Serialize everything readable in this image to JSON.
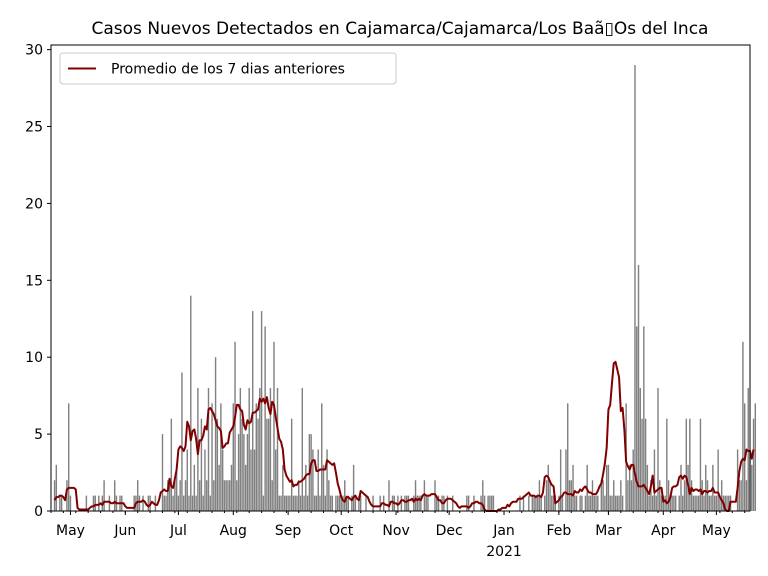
{
  "chart_data": {
    "type": "bar",
    "title": "Casos Nuevos Detectados en Cajamarca/Cajamarca/Los Baã▯Os del Inca",
    "xlabel": "",
    "ylabel": "",
    "ylim": [
      0,
      30.3
    ],
    "x_range": [
      "2020-04-20",
      "2021-05-20"
    ],
    "y_ticks": [
      0,
      5,
      10,
      15,
      20,
      25,
      30
    ],
    "x_ticks": [
      {
        "date": "2020-05-01",
        "label": "May"
      },
      {
        "date": "2020-06-01",
        "label": "Jun"
      },
      {
        "date": "2020-07-01",
        "label": "Jul"
      },
      {
        "date": "2020-08-01",
        "label": "Aug"
      },
      {
        "date": "2020-09-01",
        "label": "Sep"
      },
      {
        "date": "2020-10-01",
        "label": "Oct"
      },
      {
        "date": "2020-11-01",
        "label": "Nov"
      },
      {
        "date": "2020-12-01",
        "label": "Dec"
      },
      {
        "date": "2021-01-01",
        "label": "Jan",
        "sublabel": "2021"
      },
      {
        "date": "2021-02-01",
        "label": "Feb"
      },
      {
        "date": "2021-03-01",
        "label": "Mar"
      },
      {
        "date": "2021-04-01",
        "label": "Apr"
      },
      {
        "date": "2021-05-01",
        "label": "May"
      }
    ],
    "legend": {
      "placement": "upper-left",
      "entries": [
        "Promedio de los 7 dias anteriores"
      ]
    },
    "grid": false,
    "colors": {
      "bars": "#808080",
      "line": "#800000"
    },
    "start_date": "2020-04-22",
    "series": [
      {
        "type": "bar",
        "values": [
          2,
          3,
          0,
          1,
          1,
          0,
          0,
          2,
          7,
          1,
          0,
          0,
          0,
          0,
          0,
          0,
          0,
          0,
          1,
          0,
          0,
          0,
          1,
          1,
          0,
          1,
          0,
          1,
          2,
          0,
          0,
          1,
          0,
          0,
          2,
          1,
          0,
          1,
          1,
          0,
          0,
          0,
          0,
          0,
          0,
          1,
          1,
          2,
          1,
          0,
          1,
          0,
          0,
          1,
          1,
          0,
          0,
          1,
          0,
          0,
          0,
          5,
          1,
          1,
          2,
          2,
          6,
          1,
          2,
          3,
          1,
          2,
          9,
          1,
          2,
          4,
          1,
          14,
          1,
          3,
          1,
          8,
          2,
          6,
          1,
          4,
          2,
          8,
          1,
          7,
          2,
          10,
          6,
          3,
          7,
          4,
          2,
          2,
          2,
          2,
          3,
          7,
          11,
          2,
          5,
          8,
          6,
          5,
          3,
          5,
          8,
          4,
          13,
          4,
          7,
          6,
          8,
          13,
          1,
          12,
          6,
          6,
          8,
          2,
          11,
          4,
          8,
          1,
          1,
          3,
          1,
          1,
          1,
          1,
          6,
          1,
          1,
          1,
          2,
          1,
          8,
          1,
          3,
          1,
          5,
          5,
          4,
          1,
          1,
          4,
          1,
          7,
          3,
          1,
          4,
          2,
          1,
          1,
          0,
          1,
          1,
          1,
          1,
          1,
          2,
          1,
          1,
          0,
          1,
          3,
          1,
          0,
          1,
          1,
          0,
          0,
          1,
          0,
          0,
          0,
          1,
          0,
          0,
          0,
          1,
          0,
          1,
          0,
          0,
          2,
          0,
          1,
          1,
          0,
          1,
          0,
          1,
          0,
          1,
          1,
          1,
          0,
          0,
          1,
          2,
          1,
          1,
          1,
          0,
          2,
          1,
          1,
          0,
          0,
          0,
          2,
          1,
          1,
          0,
          1,
          1,
          0,
          1,
          0,
          0,
          1,
          0,
          0,
          0,
          0,
          0,
          0,
          0,
          1,
          1,
          0,
          0,
          1,
          0,
          0,
          0,
          1,
          2,
          1,
          0,
          1,
          1,
          1,
          1,
          0,
          0,
          0,
          0,
          0,
          0,
          0,
          0,
          0,
          0,
          0,
          0,
          0,
          0,
          1,
          0,
          1,
          0,
          0,
          1,
          0,
          1,
          1,
          1,
          1,
          2,
          1,
          0,
          1,
          2,
          3,
          2,
          1,
          1,
          1,
          0,
          1,
          4,
          1,
          0,
          4,
          7,
          2,
          2,
          3,
          1,
          1,
          0,
          1,
          1,
          0,
          1,
          3,
          1,
          1,
          2,
          1,
          1,
          1,
          0,
          2,
          2,
          1,
          3,
          3,
          1,
          1,
          2,
          1,
          1,
          1,
          2,
          1,
          0,
          7,
          2,
          3,
          2,
          4,
          29,
          12,
          16,
          8,
          6,
          12,
          6,
          3,
          1,
          2,
          1,
          4,
          1,
          8,
          2,
          1,
          1,
          1,
          6,
          2,
          1,
          1,
          1,
          1,
          0,
          1,
          3,
          1,
          2,
          6,
          3,
          6,
          2,
          1,
          1,
          1,
          1,
          6,
          2,
          1,
          3,
          2,
          1,
          1,
          3,
          1,
          1,
          4,
          1,
          2,
          1,
          1,
          1,
          1,
          1,
          0,
          0,
          0,
          4,
          2,
          2,
          11,
          7,
          2,
          8,
          4,
          3,
          6,
          7
        ]
      },
      {
        "type": "line",
        "name": "Promedio de los 7 dias anteriores",
        "values": [
          0.7,
          0.9,
          0.9,
          1,
          1,
          0.9,
          0.7,
          1.4,
          1.5,
          1.5,
          1.5,
          1.5,
          1.4,
          0.2,
          0.1,
          0.1,
          0.1,
          0.1,
          0.1,
          0.1,
          0.2,
          0.3,
          0.3,
          0.4,
          0.4,
          0.4,
          0.5,
          0.4,
          0.6,
          0.6,
          0.6,
          0.6,
          0.5,
          0.5,
          0.6,
          0.5,
          0.5,
          0.5,
          0.5,
          0.5,
          0.3,
          0.2,
          0.2,
          0.2,
          0.2,
          0.2,
          0.5,
          0.6,
          0.6,
          0.6,
          0.7,
          0.6,
          0.4,
          0.3,
          0.4,
          0.6,
          0.5,
          0.4,
          0.4,
          0.7,
          1.2,
          1.3,
          1.4,
          1.3,
          1.3,
          2.1,
          1.6,
          1.5,
          2.1,
          2.7,
          4,
          4.2,
          4.1,
          3.9,
          4.2,
          5.8,
          5.5,
          4.6,
          5.2,
          5.3,
          4.7,
          3.7,
          4.6,
          4.6,
          4.9,
          5.5,
          5.3,
          6.6,
          6.7,
          6.5,
          6.3,
          5.9,
          5.5,
          5.4,
          5.2,
          4.1,
          4.2,
          4.4,
          4.4,
          5.1,
          5.3,
          5.5,
          6.1,
          6.9,
          6.9,
          6.6,
          6.5,
          5.6,
          5.3,
          5.9,
          5.7,
          5.8,
          6.4,
          6.4,
          6.5,
          6.6,
          7.3,
          7.1,
          7.3,
          7,
          7.4,
          6.7,
          6.3,
          7.1,
          6.9,
          6.1,
          5.4,
          4.7,
          4.5,
          4,
          2.7,
          2.3,
          2.1,
          1.9,
          2,
          1.6,
          1.7,
          1.7,
          1.9,
          1.9,
          2,
          2.1,
          2.3,
          2.4,
          2.4,
          3.1,
          3.3,
          3.3,
          2.6,
          2.6,
          2.7,
          2.7,
          2.7,
          2.7,
          3.3,
          3.2,
          3.1,
          3,
          3.1,
          2.5,
          1.8,
          1.4,
          0.9,
          0.7,
          0.6,
          0.9,
          0.9,
          0.8,
          0.7,
          0.9,
          1,
          0.8,
          0.7,
          1.3,
          1.2,
          1.1,
          1,
          0.9,
          0.6,
          0.4,
          0.3,
          0.3,
          0.3,
          0.3,
          0.3,
          0.5,
          0.5,
          0.4,
          0.4,
          0.3,
          0.6,
          0.6,
          0.5,
          0.5,
          0.4,
          0.5,
          0.7,
          0.7,
          0.6,
          0.6,
          0.7,
          0.7,
          0.8,
          0.6,
          0.8,
          0.7,
          0.8,
          0.7,
          1,
          1.1,
          1,
          1,
          1,
          1.1,
          1.1,
          1.1,
          0.9,
          0.7,
          0.7,
          0.5,
          0.5,
          0.7,
          0.8,
          0.8,
          0.8,
          0.7,
          0.6,
          0.5,
          0.3,
          0.2,
          0.3,
          0.3,
          0.3,
          0.3,
          0.2,
          0.3,
          0.5,
          0.5,
          0.6,
          0.6,
          0.5,
          0.5,
          0.4,
          0.1,
          0,
          0,
          0,
          0,
          0,
          0,
          0,
          0.1,
          0.1,
          0.2,
          0.2,
          0.2,
          0.4,
          0.3,
          0.5,
          0.6,
          0.6,
          0.6,
          0.8,
          0.8,
          0.8,
          0.9,
          1,
          1.1,
          1.2,
          1,
          1,
          1,
          0.9,
          1,
          1,
          0.9,
          1.2,
          2.2,
          2.3,
          2.2,
          1.9,
          1.7,
          1.6,
          0.5,
          0.6,
          0.7,
          0.9,
          1,
          1.2,
          1.2,
          1.1,
          1.1,
          1.1,
          1,
          1.3,
          1.2,
          1.2,
          1.4,
          1.3,
          1.5,
          1.6,
          1.4,
          1.2,
          1.2,
          1.1,
          1.1,
          1.1,
          1.3,
          1.6,
          1.8,
          2.4,
          3.1,
          4.1,
          6.6,
          6.9,
          8.3,
          9.6,
          9.7,
          9.2,
          8.7,
          6.5,
          6.7,
          5.3,
          3.2,
          2.9,
          2.7,
          3,
          3,
          2.4,
          1.9,
          1.6,
          1.6,
          1.6,
          1.7,
          1.5,
          1.3,
          1.1,
          1.6,
          2.3,
          1.2,
          1.3,
          1.4,
          1.5,
          1.5,
          0.6,
          0.7,
          0.5,
          0.6,
          0.9,
          1.5,
          1.6,
          1.6,
          1.7,
          2.2,
          2.3,
          2.1,
          2.3,
          2.2,
          1.7,
          1.1,
          1.5,
          1.3,
          1.4,
          1.4,
          1.3,
          1.4,
          1.1,
          1.3,
          1.3,
          1.2,
          1.3,
          1.3,
          1.5,
          1.2,
          1.2,
          1.2,
          0.9,
          0.7,
          0.5,
          0.1,
          0,
          0,
          0.6,
          0.6,
          0.6,
          0.6,
          1.5,
          2.6,
          3.2,
          3.4,
          3.3,
          4,
          3.9,
          3.9,
          3.4,
          4
        ]
      }
    ]
  }
}
